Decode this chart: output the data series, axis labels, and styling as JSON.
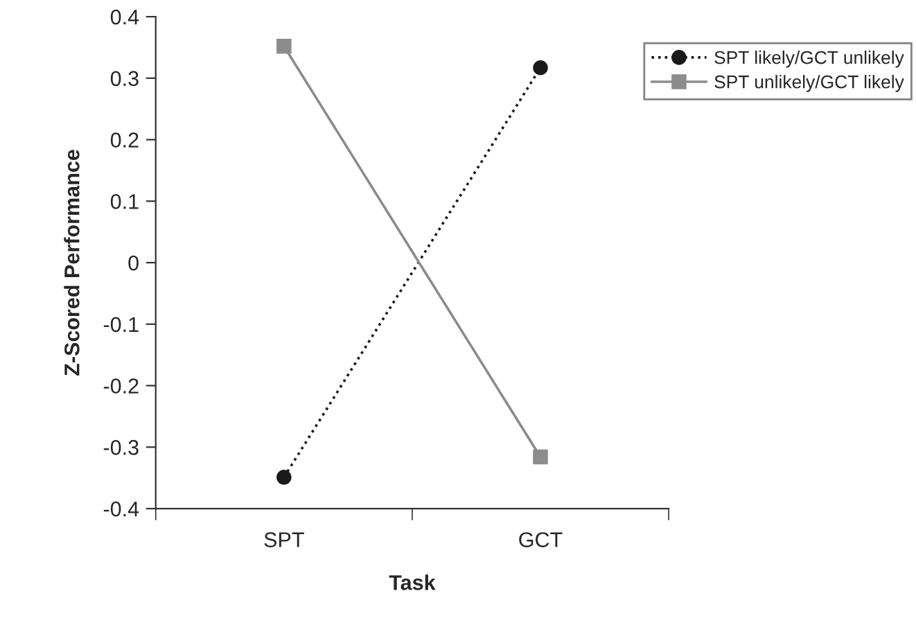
{
  "chart_data": {
    "type": "line",
    "xlabel": "Task",
    "ylabel": "Z-Scored Performance",
    "categories": [
      "SPT",
      "GCT"
    ],
    "series": [
      {
        "name": "SPT likely/GCT unlikely",
        "color": "#1a1a1a",
        "values": [
          -0.349,
          0.317
        ],
        "marker": "circle",
        "line_style": "dotted"
      },
      {
        "name": "SPT unlikely/GCT likely",
        "color": "#8c8c8c",
        "values": [
          0.352,
          -0.316
        ],
        "marker": "square",
        "line_style": "solid"
      }
    ],
    "ylim": [
      -0.4,
      0.4
    ],
    "yticks": [
      {
        "value": -0.4,
        "label": "-0.4"
      },
      {
        "value": -0.3,
        "label": "-0.3"
      },
      {
        "value": -0.2,
        "label": "-0.2"
      },
      {
        "value": -0.1,
        "label": "-0.1"
      },
      0,
      0.1,
      0.2,
      0.3,
      0.4
    ],
    "grid": false,
    "legend": "top right"
  }
}
